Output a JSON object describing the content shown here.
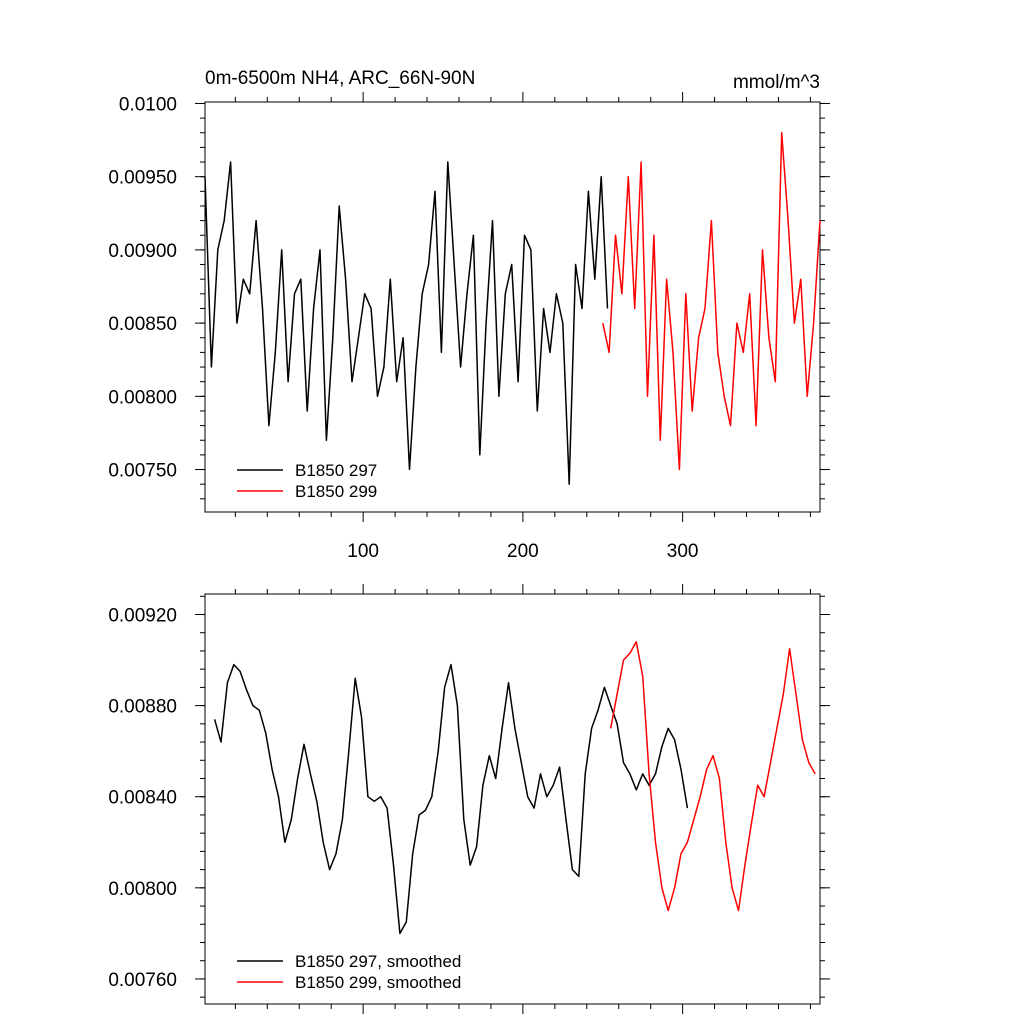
{
  "chart_data": [
    {
      "type": "line",
      "title": "0m-6500m NH4, ARC_66N-90N",
      "units_label": "mmol/m^3",
      "xlabel": "",
      "ylabel": "",
      "xlim": [
        1,
        386
      ],
      "ylim": [
        0.00721,
        0.01001
      ],
      "y_ticks": [
        0.0075,
        0.008,
        0.0085,
        0.009,
        0.0095,
        0.01
      ],
      "y_tick_labels": [
        "0.00750",
        "0.00800",
        "0.00850",
        "0.00900",
        "0.00950",
        "0.0100"
      ],
      "x_ticks": [
        100,
        200,
        300
      ],
      "x_tick_labels": [
        "100",
        "200",
        "300"
      ],
      "legend_position": "bottom-left",
      "series": [
        {
          "name": "B1850 297",
          "color": "#000000",
          "x": [
            1,
            5,
            9,
            13,
            17,
            21,
            25,
            29,
            33,
            37,
            41,
            45,
            49,
            53,
            57,
            61,
            65,
            69,
            73,
            77,
            81,
            85,
            89,
            93,
            97,
            101,
            105,
            109,
            113,
            117,
            121,
            125,
            129,
            133,
            137,
            141,
            145,
            149,
            153,
            157,
            161,
            165,
            169,
            173,
            177,
            181,
            185,
            189,
            193,
            197,
            201,
            205,
            209,
            213,
            217,
            221,
            225,
            229,
            233,
            237,
            241,
            245,
            249,
            253
          ],
          "values": [
            0.0095,
            0.0082,
            0.009,
            0.0092,
            0.0096,
            0.0085,
            0.0088,
            0.0087,
            0.0092,
            0.0086,
            0.0078,
            0.0083,
            0.009,
            0.0081,
            0.0087,
            0.0088,
            0.0079,
            0.0086,
            0.009,
            0.0077,
            0.0084,
            0.0093,
            0.0088,
            0.0081,
            0.0084,
            0.0087,
            0.0086,
            0.008,
            0.0082,
            0.0088,
            0.0081,
            0.0084,
            0.0075,
            0.0082,
            0.0087,
            0.0089,
            0.0094,
            0.0083,
            0.0096,
            0.0089,
            0.0082,
            0.0087,
            0.0091,
            0.0076,
            0.0085,
            0.0092,
            0.008,
            0.0087,
            0.0089,
            0.0081,
            0.0091,
            0.009,
            0.0079,
            0.0086,
            0.0083,
            0.0087,
            0.0085,
            0.0074,
            0.0089,
            0.0086,
            0.0094,
            0.0088,
            0.0095,
            0.0086
          ]
        },
        {
          "name": "B1850 299",
          "color": "#ff0000",
          "x": [
            250,
            254,
            258,
            262,
            266,
            270,
            274,
            278,
            282,
            286,
            290,
            294,
            298,
            302,
            306,
            310,
            314,
            318,
            322,
            326,
            330,
            334,
            338,
            342,
            346,
            350,
            354,
            358,
            362,
            366,
            370,
            374,
            378,
            382,
            386
          ],
          "values": [
            0.0085,
            0.0083,
            0.0091,
            0.0087,
            0.0095,
            0.0086,
            0.0096,
            0.008,
            0.0091,
            0.0077,
            0.0088,
            0.0083,
            0.0075,
            0.0087,
            0.0079,
            0.0084,
            0.0086,
            0.0092,
            0.0083,
            0.008,
            0.0078,
            0.0085,
            0.0083,
            0.0087,
            0.0078,
            0.009,
            0.0084,
            0.0081,
            0.0098,
            0.0092,
            0.0085,
            0.0088,
            0.008,
            0.0085,
            0.0092
          ]
        }
      ]
    },
    {
      "type": "line",
      "title": "",
      "xlabel": "",
      "ylabel": "",
      "xlim": [
        1,
        386
      ],
      "ylim": [
        0.00749,
        0.00929
      ],
      "y_ticks": [
        0.0076,
        0.008,
        0.0084,
        0.0088,
        0.0092
      ],
      "y_tick_labels": [
        "0.00760",
        "0.00800",
        "0.00840",
        "0.00880",
        "0.00920"
      ],
      "x_ticks": [
        100,
        200,
        300
      ],
      "x_tick_labels": [
        "",
        "",
        ""
      ],
      "legend_position": "bottom-left",
      "series": [
        {
          "name": "B1850 297, smoothed",
          "color": "#000000",
          "x": [
            7,
            11,
            15,
            19,
            23,
            27,
            31,
            35,
            39,
            43,
            47,
            51,
            55,
            59,
            63,
            67,
            71,
            75,
            79,
            83,
            87,
            91,
            95,
            99,
            103,
            107,
            111,
            115,
            119,
            123,
            127,
            131,
            135,
            139,
            143,
            147,
            151,
            155,
            159,
            163,
            167,
            171,
            175,
            179,
            183,
            187,
            191,
            195,
            199,
            203,
            207,
            211,
            215,
            219,
            223,
            227,
            231,
            235,
            239,
            243,
            247,
            251,
            255,
            259,
            263,
            267,
            271,
            275,
            279,
            283,
            287,
            291,
            295,
            299,
            303
          ],
          "values": [
            0.00874,
            0.00864,
            0.0089,
            0.00898,
            0.00895,
            0.00887,
            0.0088,
            0.00878,
            0.00868,
            0.00852,
            0.0084,
            0.0082,
            0.0083,
            0.00848,
            0.00863,
            0.0085,
            0.00838,
            0.0082,
            0.00808,
            0.00815,
            0.0083,
            0.0086,
            0.00892,
            0.00875,
            0.0084,
            0.00838,
            0.0084,
            0.00835,
            0.0081,
            0.0078,
            0.00785,
            0.00815,
            0.00832,
            0.00834,
            0.0084,
            0.0086,
            0.00888,
            0.00898,
            0.0088,
            0.0083,
            0.0081,
            0.00818,
            0.00845,
            0.00858,
            0.00848,
            0.0087,
            0.0089,
            0.0087,
            0.00855,
            0.0084,
            0.00835,
            0.0085,
            0.0084,
            0.00845,
            0.00853,
            0.0083,
            0.00808,
            0.00805,
            0.0085,
            0.0087,
            0.00878,
            0.00888,
            0.0088,
            0.00872,
            0.00855,
            0.0085,
            0.00843,
            0.0085,
            0.00845,
            0.0085,
            0.00862,
            0.0087,
            0.00865,
            0.00852,
            0.00835
          ]
        },
        {
          "name": "B1850 299, smoothed",
          "color": "#ff0000",
          "x": [
            255,
            259,
            263,
            267,
            271,
            275,
            279,
            283,
            287,
            291,
            295,
            299,
            303,
            307,
            311,
            315,
            319,
            323,
            327,
            331,
            335,
            339,
            343,
            347,
            351,
            355,
            359,
            363,
            367,
            371,
            375,
            379,
            383
          ],
          "values": [
            0.0087,
            0.00885,
            0.009,
            0.00903,
            0.00908,
            0.00893,
            0.0085,
            0.0082,
            0.008,
            0.0079,
            0.008,
            0.00815,
            0.0082,
            0.0083,
            0.0084,
            0.00852,
            0.00858,
            0.00848,
            0.0082,
            0.008,
            0.0079,
            0.0081,
            0.00828,
            0.00845,
            0.0084,
            0.00855,
            0.0087,
            0.00885,
            0.00905,
            0.00885,
            0.00865,
            0.00855,
            0.0085
          ]
        }
      ]
    }
  ]
}
